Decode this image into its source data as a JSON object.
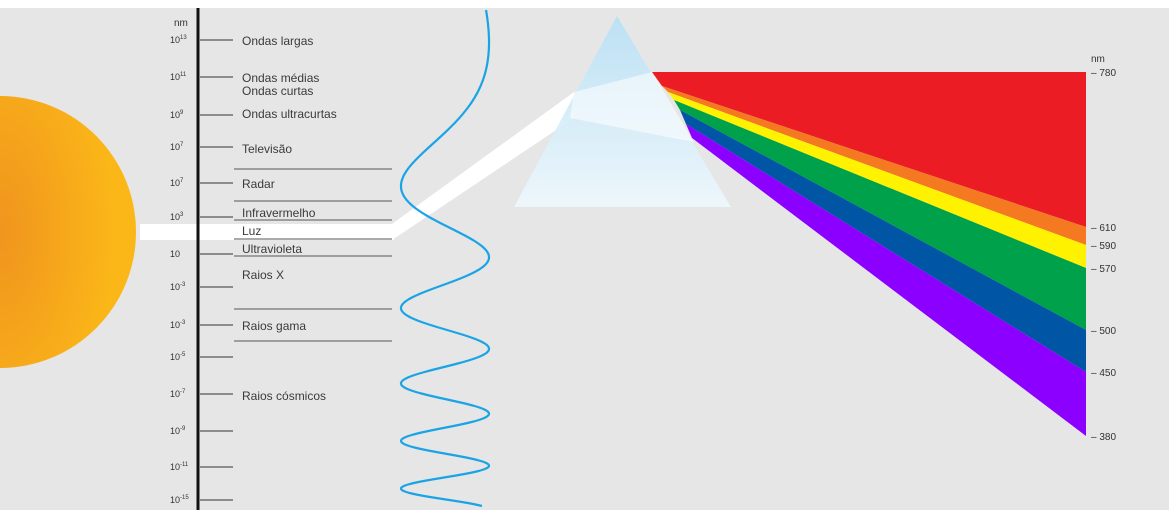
{
  "colors": {
    "background": "#e6e6e6",
    "sun_outer": "#fbb718",
    "sun_inner": "#f0941e",
    "wave": "#1aa4e6",
    "prism": "#cde9f7",
    "light_beam": "#ffffff",
    "bands": [
      "#ec1c24",
      "#f47920",
      "#fff200",
      "#00a14b",
      "#0055a5",
      "#8b00ff"
    ]
  },
  "scale": {
    "unit": "nm",
    "ticks": [
      {
        "base": "10",
        "exp": "13"
      },
      {
        "base": "10",
        "exp": "11"
      },
      {
        "base": "10",
        "exp": "9"
      },
      {
        "base": "10",
        "exp": "7"
      },
      {
        "base": "10",
        "exp": "7"
      },
      {
        "base": "10",
        "exp": "3"
      },
      {
        "base": "10",
        "exp": ""
      },
      {
        "base": "10",
        "exp": "-3"
      },
      {
        "base": "10",
        "exp": "-3"
      },
      {
        "base": "10",
        "exp": "-5"
      },
      {
        "base": "10",
        "exp": "-7"
      },
      {
        "base": "10",
        "exp": "-9"
      },
      {
        "base": "10",
        "exp": "-11"
      },
      {
        "base": "10",
        "exp": "-15"
      }
    ]
  },
  "regions": {
    "ondas_largas": "Ondas largas",
    "ondas_medias": "Ondas médias",
    "ondas_curtas": "Ondas curtas",
    "ondas_ultracurtas": "Ondas ultracurtas",
    "televisao": "Televisão",
    "radar": "Radar",
    "infravermelho": "Infravermelho",
    "luz": "Luz",
    "ultravioleta": "Ultravioleta",
    "raios_x": "Raios X",
    "raios_gama": "Raios gama",
    "raios_cosmicos": "Raios cósmicos"
  },
  "visible": {
    "unit": "nm",
    "wavelengths": [
      "– 780",
      "– 610",
      "– 590",
      "– 570",
      "– 500",
      "– 450",
      "– 380"
    ]
  }
}
